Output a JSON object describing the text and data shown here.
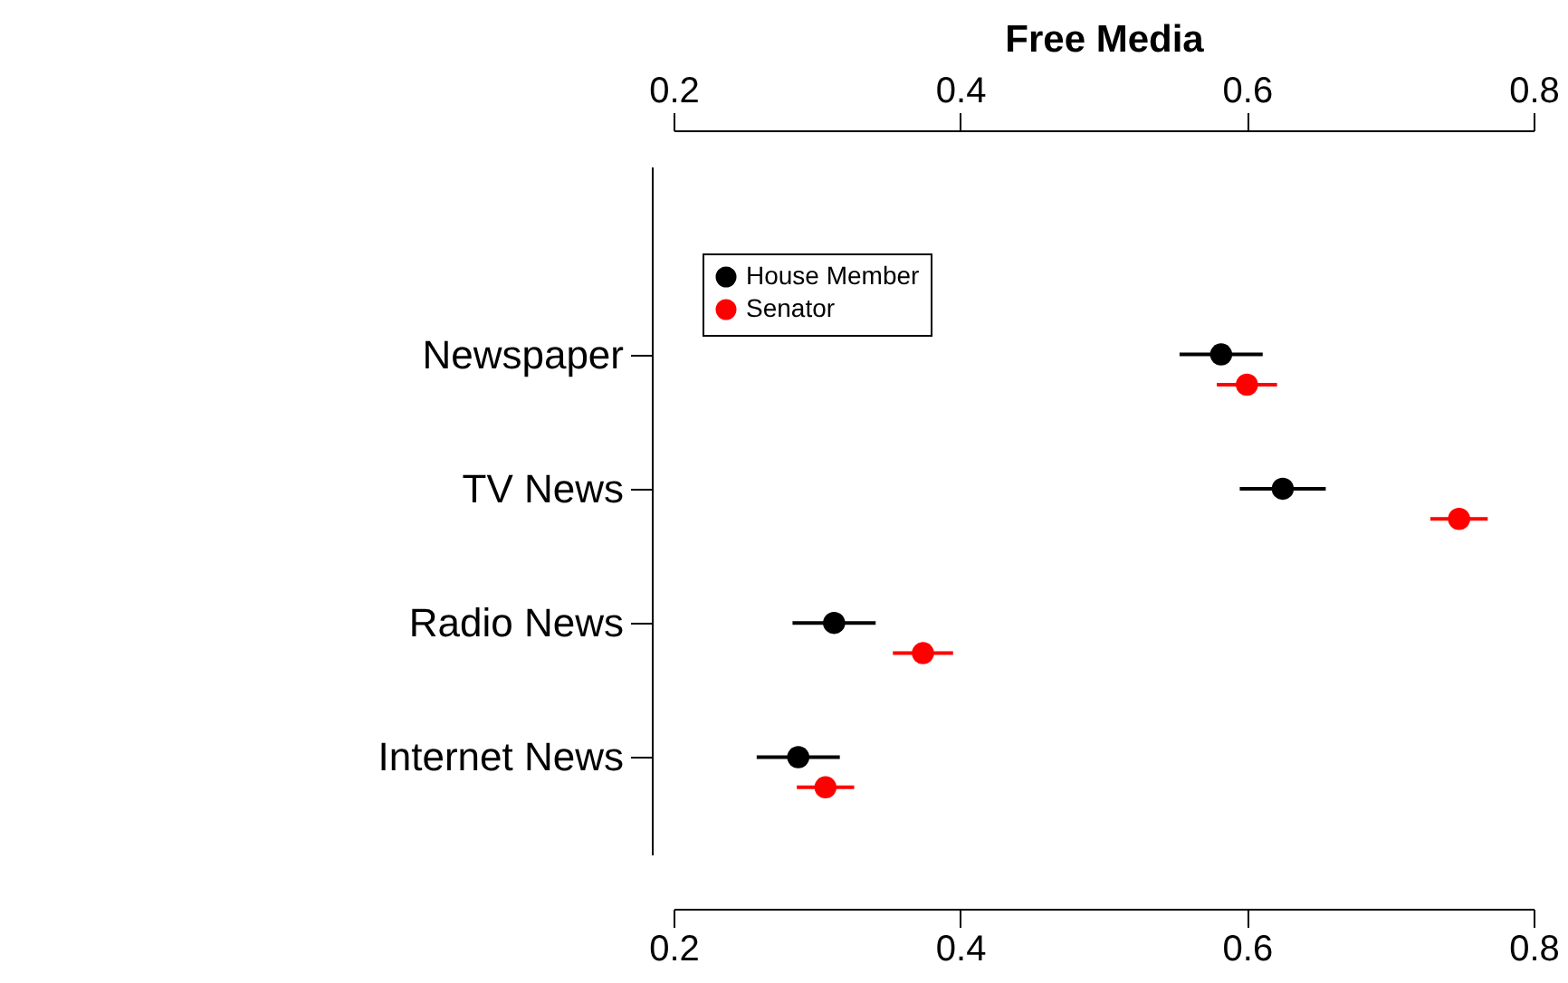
{
  "chart_data": {
    "type": "scatter",
    "orientation": "horizontal",
    "title": "Free Media",
    "categories": [
      "Newspaper",
      "TV News",
      "Radio News",
      "Internet News"
    ],
    "series": [
      {
        "name": "House Member",
        "color": "#000000",
        "values": [
          0.582,
          0.625,
          0.312,
          0.287
        ],
        "errors": [
          0.029,
          0.03,
          0.029,
          0.029
        ]
      },
      {
        "name": "Senator",
        "color": "#ff0000",
        "values": [
          0.6,
          0.748,
          0.374,
          0.306
        ],
        "errors": [
          0.021,
          0.02,
          0.021,
          0.02
        ]
      }
    ],
    "xlim": [
      0.2,
      0.8
    ],
    "xticks": [
      0.2,
      0.4,
      0.6,
      0.8
    ],
    "x2lim": [
      0.2,
      0.8
    ],
    "x2ticks": [
      0.2,
      0.4,
      0.6,
      0.8
    ],
    "legend": "top left",
    "marker": "circle",
    "grid": false
  }
}
